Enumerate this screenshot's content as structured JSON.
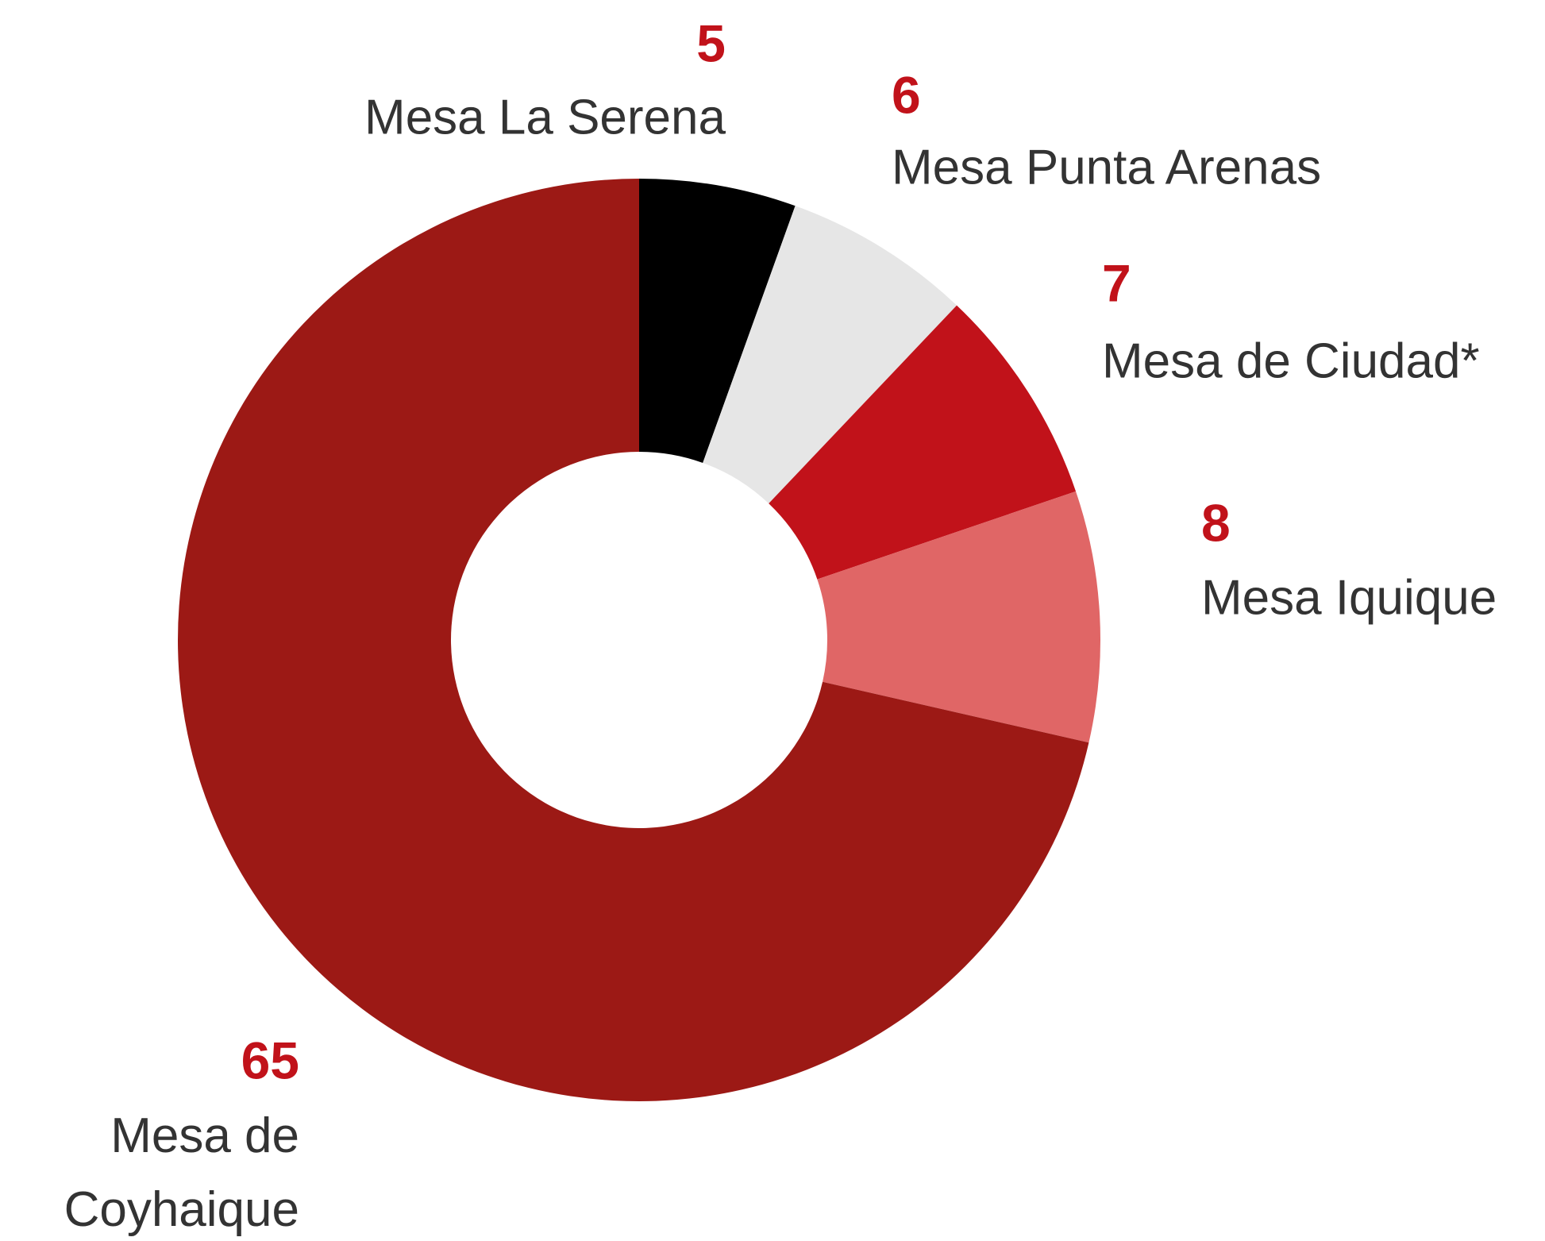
{
  "chart_data": {
    "type": "donut",
    "categories": [
      "Mesa La Serena",
      "Mesa Punta Arenas",
      "Mesa de Ciudad*",
      "Mesa Iquique",
      "Mesa de Coyhaique"
    ],
    "values": [
      5,
      6,
      7,
      8,
      65
    ],
    "colors": [
      "#000000",
      "#e6e6e6",
      "#c1121a",
      "#e06666",
      "#9c1915"
    ],
    "value_color": "#c1121a"
  }
}
